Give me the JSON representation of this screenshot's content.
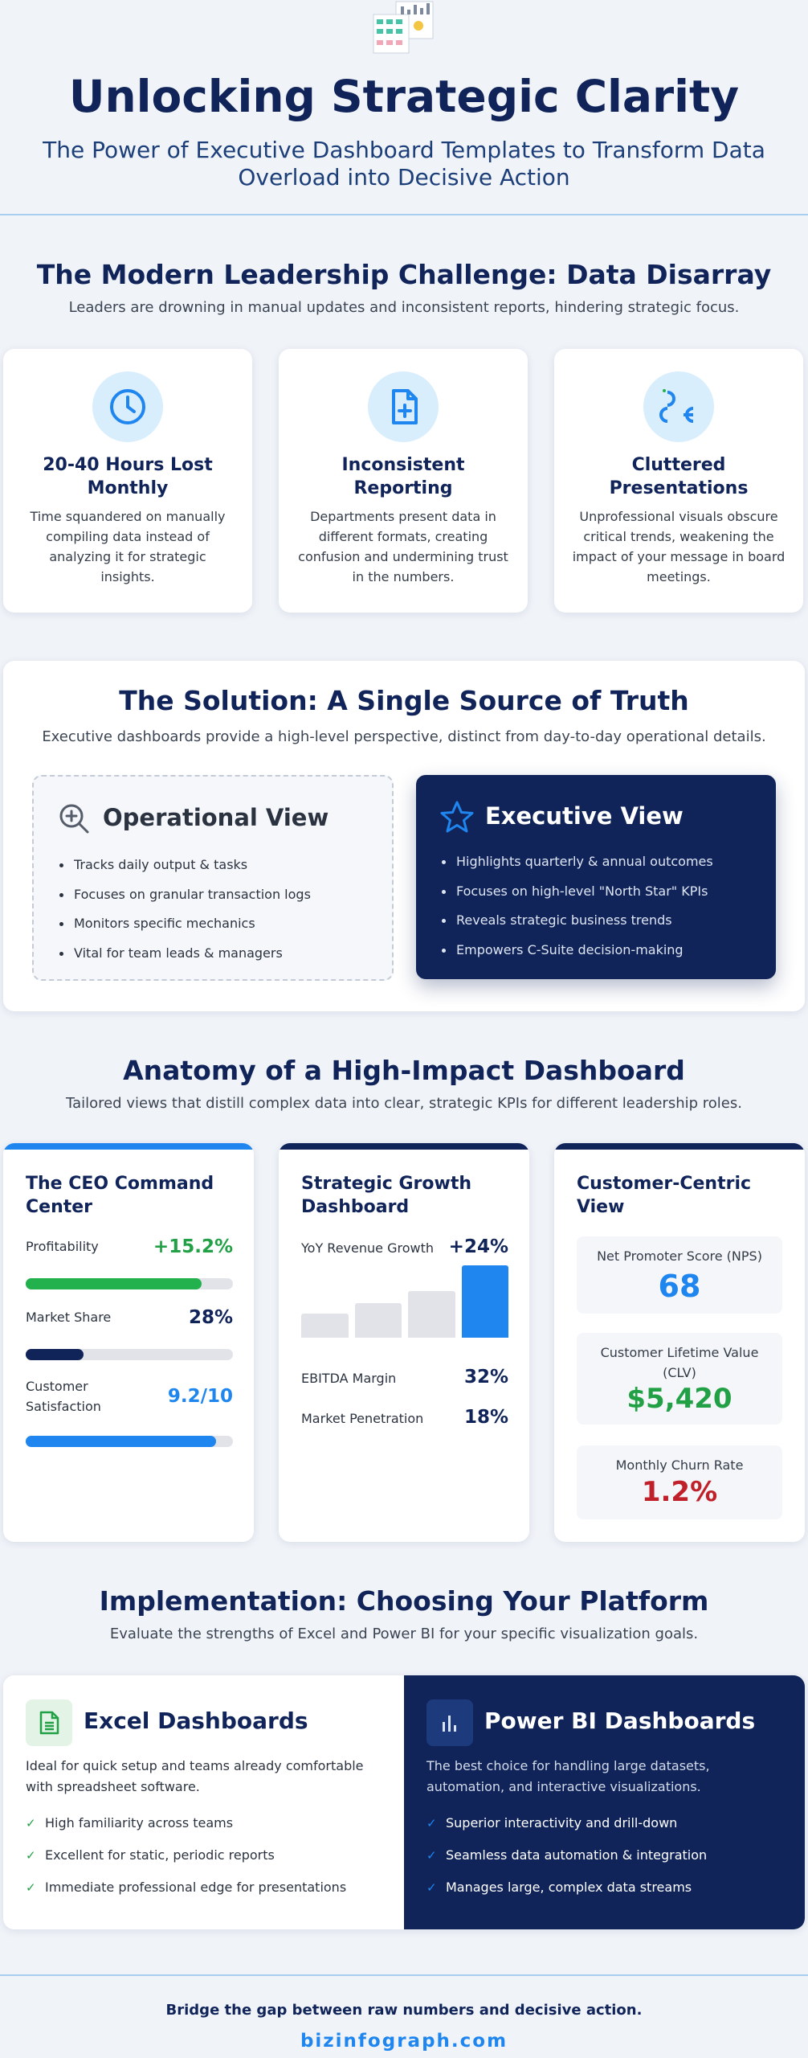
{
  "colors": {
    "navy": "#10245a",
    "blue": "#1f86f0",
    "green": "#22b14c",
    "red": "#c0202a",
    "icon_bg": "#d9eefc"
  },
  "header": {
    "logo_icon": "dashboard-thumbnail-icon",
    "title": "Unlocking Strategic Clarity",
    "subtitle": "The Power of Executive Dashboard Templates to Transform Data Overload into Decisive Action"
  },
  "challenge": {
    "title": "The Modern Leadership Challenge: Data Disarray",
    "subtitle": "Leaders are drowning in manual updates and inconsistent reports, hindering strategic focus.",
    "cards": [
      {
        "icon": "clock-icon",
        "title": "20-40 Hours Lost Monthly",
        "text": "Time squandered on manually compiling data instead of analyzing it for strategic insights."
      },
      {
        "icon": "file-plus-icon",
        "title": "Inconsistent Reporting",
        "text": "Departments present data in different formats, creating confusion and undermining trust in the numbers."
      },
      {
        "icon": "broken-icon",
        "title": "Cluttered Presentations",
        "text": "Unprofessional visuals obscure critical trends, weakening the impact of your message in board meetings."
      }
    ]
  },
  "solution": {
    "title": "The Solution: A Single Source of Truth",
    "subtitle": "Executive dashboards provide a high-level perspective, distinct from day-to-day operational details.",
    "operational": {
      "icon": "magnify-plus-icon",
      "title": "Operational View",
      "items": [
        "Tracks daily output & tasks",
        "Focuses on granular transaction logs",
        "Monitors specific mechanics",
        "Vital for team leads & managers"
      ]
    },
    "executive": {
      "icon": "star-icon",
      "title": "Executive View",
      "items": [
        "Highlights quarterly & annual outcomes",
        "Focuses on high-level \"North Star\" KPIs",
        "Reveals strategic business trends",
        "Empowers C-Suite decision-making"
      ]
    }
  },
  "anatomy": {
    "title": "Anatomy of a High-Impact Dashboard",
    "subtitle": "Tailored views that distill complex data into clear, strategic KPIs for different leadership roles.",
    "ceo": {
      "title": "The CEO Command Center",
      "metrics": [
        {
          "label": "Profitability",
          "value": "+15.2%",
          "progress": 0.85,
          "color": "#22b14c",
          "value_color": "#22a046"
        },
        {
          "label": "Market Share",
          "value": "28%",
          "progress": 0.28,
          "color": "#10245a",
          "value_color": "#10245a"
        },
        {
          "label": "Customer Satisfaction",
          "value": "9.2/10",
          "progress": 0.92,
          "color": "#1f86f0",
          "value_color": "#1f86f0"
        }
      ]
    },
    "growth": {
      "title": "Strategic Growth Dashboard",
      "revenue_label": "YoY Revenue Growth",
      "revenue_value": "+24%",
      "bars": [
        0.33,
        0.48,
        0.64,
        1.0
      ],
      "metrics": [
        {
          "label": "EBITDA Margin",
          "value": "32%"
        },
        {
          "label": "Market Penetration",
          "value": "18%"
        }
      ]
    },
    "customer": {
      "title": "Customer-Centric View",
      "kpis": [
        {
          "label": "Net Promoter Score (NPS)",
          "value": "68",
          "color": "#1f86f0"
        },
        {
          "label": "Customer Lifetime Value (CLV)",
          "value": "$5,420",
          "color": "#22a046"
        },
        {
          "label": "Monthly Churn Rate",
          "value": "1.2%",
          "color": "#c0202a"
        }
      ]
    }
  },
  "platform": {
    "title": "Implementation: Choosing Your Platform",
    "subtitle": "Evaluate the strengths of Excel and Power BI for your specific visualization goals.",
    "excel": {
      "icon": "spreadsheet-icon",
      "title": "Excel Dashboards",
      "desc": "Ideal for quick setup and teams already comfortable with spreadsheet software.",
      "items": [
        "High familiarity across teams",
        "Excellent for static, periodic reports",
        "Immediate professional edge for presentations"
      ]
    },
    "powerbi": {
      "icon": "bar-chart-icon",
      "title": "Power BI Dashboards",
      "desc": "The best choice for handling large datasets, automation, and interactive visualizations.",
      "items": [
        "Superior interactivity and drill-down",
        "Seamless data automation & integration",
        "Manages large, complex data streams"
      ]
    },
    "check_glyph": "✓"
  },
  "footer": {
    "tagline": "Bridge the gap between raw numbers and decisive action.",
    "url": "bizinfograph.com"
  }
}
